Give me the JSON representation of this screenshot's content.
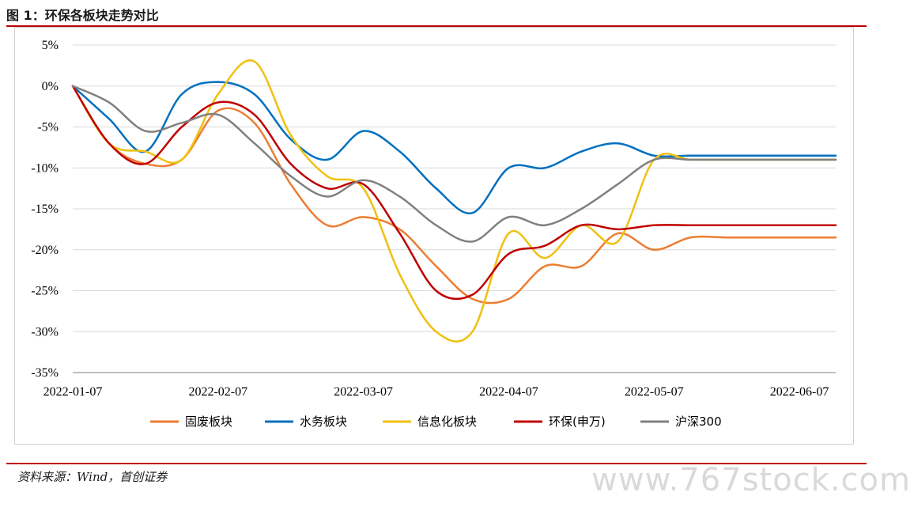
{
  "figure": {
    "title": "图 1：环保各板块走势对比",
    "source": "资料来源：Wind，首创证券",
    "watermark": "www.767stock.com"
  },
  "chart_data": {
    "type": "line",
    "title": "",
    "xlabel": "",
    "ylabel": "",
    "x": [
      "2022-01-07",
      "2022-01-14",
      "2022-01-21",
      "2022-01-28",
      "2022-02-07",
      "2022-02-14",
      "2022-02-21",
      "2022-02-28",
      "2022-03-07",
      "2022-03-14",
      "2022-03-21",
      "2022-03-28",
      "2022-04-07",
      "2022-04-14",
      "2022-04-21",
      "2022-04-28",
      "2022-05-07",
      "2022-05-14",
      "2022-05-21",
      "2022-05-28",
      "2022-06-07",
      "2022-06-14"
    ],
    "x_ticks": [
      "2022-01-07",
      "2022-02-07",
      "2022-03-07",
      "2022-04-07",
      "2022-05-07",
      "2022-06-07"
    ],
    "y_ticks": [
      5,
      0,
      -5,
      -10,
      -15,
      -20,
      -25,
      -30,
      -35
    ],
    "y_tick_labels": [
      "5%",
      "0%",
      "-5%",
      "-10%",
      "-15%",
      "-20%",
      "-25%",
      "-30%",
      "-35%"
    ],
    "ylim": [
      -35,
      5
    ],
    "grid": "horizontal",
    "legend_position": "bottom",
    "series": [
      {
        "name": "固废板块",
        "color": "#ed7d31",
        "values": [
          0,
          -7,
          -9.5,
          -9,
          -3,
          -4.5,
          -12,
          -17,
          -16,
          -17.5,
          -22,
          -26,
          -26,
          -22,
          -22,
          -18,
          -20,
          -18.5,
          -18.5,
          -18.5,
          -18.5,
          -18.5
        ]
      },
      {
        "name": "水务板块",
        "color": "#0070c0",
        "values": [
          0,
          -4,
          -8,
          -1,
          0.5,
          -1,
          -6.5,
          -9,
          -5.5,
          -8,
          -12.5,
          -15.5,
          -10,
          -10,
          -8,
          -7,
          -8.5,
          -8.5,
          -8.5,
          -8.5,
          -8.5,
          -8.5
        ]
      },
      {
        "name": "信息化板块",
        "color": "#f0c010",
        "values": [
          0,
          -7,
          -8,
          -9,
          -1,
          3,
          -6,
          -11,
          -12.5,
          -23,
          -30,
          -30,
          -18,
          -21,
          -17,
          -19,
          -9,
          -9,
          -9,
          -9,
          -9,
          -9
        ]
      },
      {
        "name": "环保(申万)",
        "color": "#c00000",
        "values": [
          0,
          -7,
          -9.5,
          -5,
          -2,
          -3.5,
          -9.5,
          -12.5,
          -12,
          -18,
          -25,
          -25.5,
          -20.5,
          -19.5,
          -17,
          -17.5,
          -17,
          -17,
          -17,
          -17,
          -17,
          -17
        ]
      },
      {
        "name": "沪深300",
        "color": "#808080",
        "values": [
          0,
          -2,
          -5.5,
          -4.5,
          -3.5,
          -7,
          -11,
          -13.5,
          -11.5,
          -13.5,
          -17,
          -19,
          -16,
          -17,
          -15,
          -12,
          -9,
          -9,
          -9,
          -9,
          -9,
          -9
        ]
      }
    ]
  }
}
